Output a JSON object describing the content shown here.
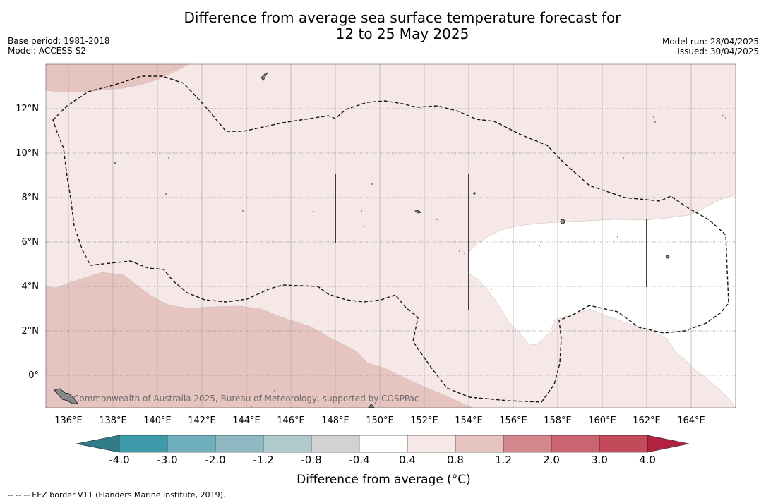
{
  "title_line1": "Difference from average sea surface temperature forecast for",
  "title_line2": "12 to 25 May 2025",
  "base_period": "Base period: 1981-2018",
  "model": "Model: ACCESS-S2",
  "model_run": "Model run: 28/04/2025",
  "issued": "Issued: 30/04/2025",
  "credit": "Commonwealth of Australia 2025, Bureau of Meteorology, supported by COSPPac",
  "colorbar_label": "Difference from average (°C)",
  "footnote": "-- -- -- EEZ border V11 (Flanders Marine Institute, 2019).",
  "lon_ticks": [
    "136°E",
    "138°E",
    "140°E",
    "142°E",
    "144°E",
    "146°E",
    "148°E",
    "150°E",
    "152°E",
    "154°E",
    "156°E",
    "158°E",
    "160°E",
    "162°E",
    "164°E"
  ],
  "lat_ticks": [
    "12°N",
    "10°N",
    "8°N",
    "6°N",
    "4°N",
    "2°N",
    "0°"
  ],
  "colorbar": {
    "ticks": [
      "-4.0",
      "-3.0",
      "-2.0",
      "-1.2",
      "-0.8",
      "-0.4",
      "0.4",
      "0.8",
      "1.2",
      "2.0",
      "3.0",
      "4.0"
    ],
    "colors": [
      "#3d9aa9",
      "#4ba3b2",
      "#6fafbd",
      "#8fb9c2",
      "#b0cbcd",
      "#d2d2d2",
      "#ffffff",
      "#f5e8e6",
      "#e6c5c0",
      "#d4878c",
      "#c96470",
      "#c24a5b"
    ],
    "under_color": "#2f7c88",
    "over_color": "#b2213f"
  },
  "colors": {
    "light_pink": "#f5e8e6",
    "medium_pink": "#e6c5c0",
    "white": "#ffffff"
  }
}
